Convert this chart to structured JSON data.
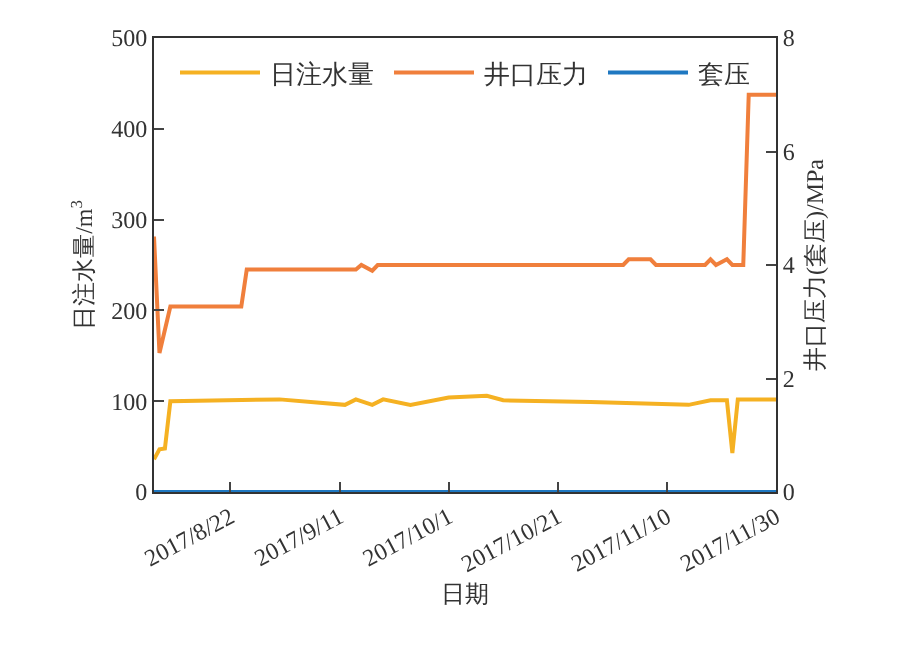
{
  "chart_data": {
    "type": "line",
    "xlabel": "日期",
    "ylabel": "日注水量/m$^{3}$",
    "y2label": "井口压力(套压)/MPa",
    "xlim": [
      "2017-08-08",
      "2017-11-30"
    ],
    "xticks": [
      {
        "value": "2017-08-22",
        "label": "2017/8/22"
      },
      {
        "value": "2017-09-11",
        "label": "2017/9/11"
      },
      {
        "value": "2017-10-01",
        "label": "2017/10/1"
      },
      {
        "value": "2017-10-21",
        "label": "2017/10/21"
      },
      {
        "value": "2017-11-10",
        "label": "2017/11/10"
      },
      {
        "value": "2017-11-30",
        "label": "2017/11/30"
      }
    ],
    "ylim": [
      0,
      500
    ],
    "yticks": [
      0,
      100,
      200,
      300,
      400,
      500
    ],
    "y2lim": [
      0,
      8
    ],
    "y2ticks": [
      0,
      2,
      4,
      6,
      8
    ],
    "legend": "top",
    "marker": "none",
    "line_style": "solid",
    "series": [
      {
        "name": "日注水量",
        "color": "#f5b122",
        "x": [
          "2017-08-08",
          "2017-08-09",
          "2017-08-10",
          "2017-08-11",
          "2017-08-31",
          "2017-09-12",
          "2017-09-14",
          "2017-09-17",
          "2017-09-19",
          "2017-09-24",
          "2017-10-01",
          "2017-10-08",
          "2017-10-11",
          "2017-10-27",
          "2017-11-14",
          "2017-11-18",
          "2017-11-21",
          "2017-11-22",
          "2017-11-23",
          "2017-11-30"
        ],
        "values": [
          36,
          47,
          48,
          100,
          102,
          96,
          102,
          96,
          102,
          96,
          104,
          106,
          101,
          99,
          96,
          101,
          101,
          43,
          102,
          102
        ]
      },
      {
        "name": "井口压力",
        "color": "#f07f3c",
        "axis": "y2",
        "x": [
          "2017-08-08",
          "2017-08-09",
          "2017-08-11",
          "2017-08-24",
          "2017-08-25",
          "2017-09-14",
          "2017-09-15",
          "2017-09-17",
          "2017-09-18",
          "2017-11-02",
          "2017-11-03",
          "2017-11-07",
          "2017-11-08",
          "2017-11-17",
          "2017-11-18",
          "2017-11-19",
          "2017-11-21",
          "2017-11-22",
          "2017-11-24",
          "2017-11-25",
          "2017-11-30"
        ],
        "values": [
          4.5,
          2.45,
          3.27,
          3.27,
          3.92,
          3.92,
          4.0,
          3.9,
          4.0,
          4.0,
          4.1,
          4.1,
          4.0,
          4.0,
          4.1,
          4.0,
          4.1,
          4.0,
          4.0,
          7.0,
          7.0
        ]
      },
      {
        "name": "套压",
        "color": "#1f78c1",
        "axis": "y2",
        "x": [
          "2017-08-08",
          "2017-11-30"
        ],
        "values": [
          0,
          0
        ]
      }
    ]
  }
}
